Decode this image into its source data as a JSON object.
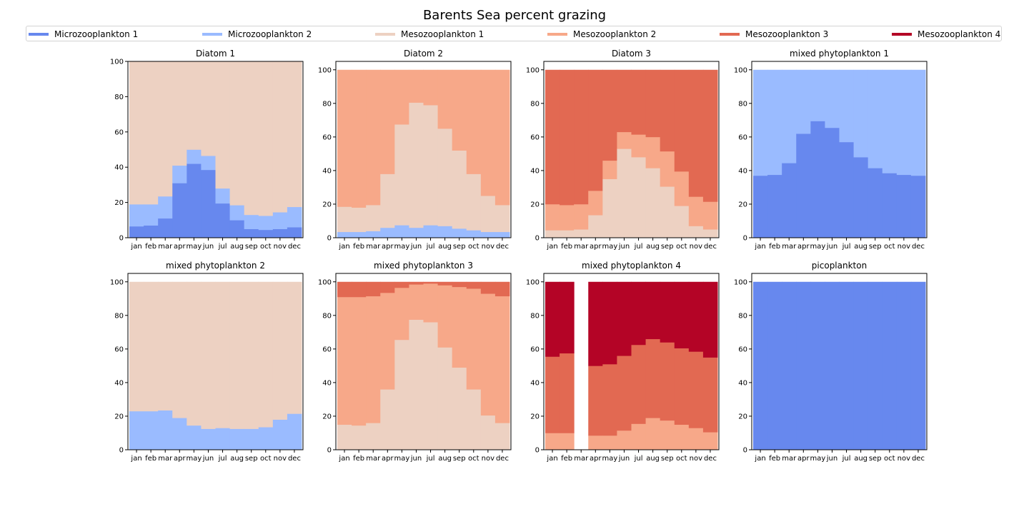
{
  "title": "Barents Sea percent grazing",
  "series_names": [
    "Microzooplankton 1",
    "Microzooplankton 2",
    "Mesozooplankton 1",
    "Mesozooplankton 2",
    "Mesozooplankton 3",
    "Mesozooplankton 4"
  ],
  "colors": {
    "Microzooplankton 1": "#6788ee",
    "Microzooplankton 2": "#9abbff",
    "Mesozooplankton 1": "#edd1c2",
    "Mesozooplankton 2": "#f7a889",
    "Mesozooplankton 3": "#e26952",
    "Mesozooplankton 4": "#b40426"
  },
  "chart_data": [
    {
      "type": "bar",
      "stacked": true,
      "title": "Diatom 1",
      "categories": [
        "jan",
        "feb",
        "mar",
        "apr",
        "may",
        "jun",
        "jul",
        "aug",
        "sep",
        "oct",
        "nov",
        "dec"
      ],
      "ylim": [
        0,
        100
      ],
      "yticks": [
        0,
        20,
        40,
        60,
        80,
        100
      ],
      "series": [
        {
          "name": "Microzooplankton 1",
          "values": [
            6.5,
            7,
            11,
            31,
            42,
            38.5,
            19.5,
            10,
            5,
            4.5,
            5,
            6
          ]
        },
        {
          "name": "Microzooplankton 2",
          "values": [
            12.5,
            12,
            12.5,
            10,
            8,
            8,
            8.5,
            8.5,
            8,
            8,
            9.5,
            11.5
          ]
        },
        {
          "name": "Mesozooplankton 1",
          "values": [
            81,
            81,
            76.5,
            59,
            50,
            53.5,
            72,
            81.5,
            87,
            87.5,
            85.5,
            82.5
          ]
        }
      ]
    },
    {
      "type": "bar",
      "stacked": true,
      "title": "Diatom 2",
      "categories": [
        "jan",
        "feb",
        "mar",
        "apr",
        "may",
        "jun",
        "jul",
        "aug",
        "sep",
        "oct",
        "nov",
        "dec"
      ],
      "ylim": [
        0,
        105
      ],
      "yticks": [
        0,
        20,
        40,
        60,
        80,
        100
      ],
      "series": [
        {
          "name": "Microzooplankton 2",
          "values": [
            3.5,
            3.5,
            4,
            6,
            7.5,
            6,
            7.5,
            7,
            5.5,
            4.5,
            3.5,
            3.5
          ]
        },
        {
          "name": "Mesozooplankton 1",
          "values": [
            15,
            14.5,
            15.5,
            32,
            60,
            74.5,
            71.5,
            58,
            46.5,
            33.5,
            21.5,
            16
          ]
        },
        {
          "name": "Mesozooplankton 2",
          "values": [
            81.5,
            82,
            80.5,
            62,
            32.5,
            19.5,
            21,
            35,
            48,
            62,
            75,
            80.5
          ]
        }
      ]
    },
    {
      "type": "bar",
      "stacked": true,
      "title": "Diatom 3",
      "categories": [
        "jan",
        "feb",
        "mar",
        "apr",
        "may",
        "jun",
        "jul",
        "aug",
        "sep",
        "oct",
        "nov",
        "dec"
      ],
      "ylim": [
        0,
        105
      ],
      "yticks": [
        0,
        20,
        40,
        60,
        80,
        100
      ],
      "series": [
        {
          "name": "Mesozooplankton 1",
          "values": [
            4.5,
            4.5,
            5,
            13.5,
            35,
            53,
            48,
            41.5,
            30.5,
            19,
            7,
            5
          ]
        },
        {
          "name": "Mesozooplankton 2",
          "values": [
            15.5,
            15,
            15,
            14.5,
            11,
            10,
            13.5,
            18.5,
            21,
            20.5,
            17.5,
            16.5
          ]
        },
        {
          "name": "Mesozooplankton 3",
          "values": [
            80,
            80.5,
            80,
            72,
            54,
            37,
            38.5,
            40,
            48.5,
            60.5,
            75.5,
            78.5
          ]
        }
      ]
    },
    {
      "type": "bar",
      "stacked": true,
      "title": "mixed phytoplankton 1",
      "categories": [
        "jan",
        "feb",
        "mar",
        "apr",
        "may",
        "jun",
        "jul",
        "aug",
        "sep",
        "oct",
        "nov",
        "dec"
      ],
      "ylim": [
        0,
        105
      ],
      "yticks": [
        0,
        20,
        40,
        60,
        80,
        100
      ],
      "series": [
        {
          "name": "Microzooplankton 1",
          "values": [
            37,
            37.5,
            44.5,
            62,
            69.5,
            65.5,
            57,
            48,
            41.5,
            38.5,
            37.5,
            37
          ]
        },
        {
          "name": "Microzooplankton 2",
          "values": [
            63,
            62.5,
            55.5,
            38,
            30.5,
            34.5,
            43,
            52,
            58.5,
            61.5,
            62.5,
            63
          ]
        }
      ]
    },
    {
      "type": "bar",
      "stacked": true,
      "title": "mixed phytoplankton 2",
      "categories": [
        "jan",
        "feb",
        "mar",
        "apr",
        "may",
        "jun",
        "jul",
        "aug",
        "sep",
        "oct",
        "nov",
        "dec"
      ],
      "ylim": [
        0,
        105
      ],
      "yticks": [
        0,
        20,
        40,
        60,
        80,
        100
      ],
      "series": [
        {
          "name": "Microzooplankton 2",
          "values": [
            23,
            23,
            23.5,
            19,
            14.5,
            12.5,
            13,
            12.5,
            12.5,
            13.5,
            18,
            21.5
          ]
        },
        {
          "name": "Mesozooplankton 1",
          "values": [
            77,
            77,
            76.5,
            81,
            85.5,
            87.5,
            87,
            87.5,
            87.5,
            86.5,
            82,
            78.5
          ]
        }
      ]
    },
    {
      "type": "bar",
      "stacked": true,
      "title": "mixed phytoplankton 3",
      "categories": [
        "jan",
        "feb",
        "mar",
        "apr",
        "may",
        "jun",
        "jul",
        "aug",
        "sep",
        "oct",
        "nov",
        "dec"
      ],
      "ylim": [
        0,
        105
      ],
      "yticks": [
        0,
        20,
        40,
        60,
        80,
        100
      ],
      "series": [
        {
          "name": "Mesozooplankton 1",
          "values": [
            15,
            14.5,
            16,
            36,
            65.5,
            77.5,
            76,
            61,
            49,
            36,
            20.5,
            16
          ]
        },
        {
          "name": "Mesozooplankton 2",
          "values": [
            76,
            76.5,
            75.5,
            57.5,
            31,
            21,
            23,
            37,
            48,
            60,
            72.5,
            75.5
          ]
        },
        {
          "name": "Mesozooplankton 3",
          "values": [
            9,
            9,
            8.5,
            6.5,
            3.5,
            1.5,
            1,
            2,
            3,
            4,
            7,
            8.5
          ]
        }
      ]
    },
    {
      "type": "bar",
      "stacked": true,
      "title": "mixed phytoplankton 4",
      "categories": [
        "jan",
        "feb",
        "mar",
        "apr",
        "may",
        "jun",
        "jul",
        "aug",
        "sep",
        "oct",
        "nov",
        "dec"
      ],
      "ylim": [
        0,
        105
      ],
      "yticks": [
        0,
        20,
        40,
        60,
        80,
        100
      ],
      "series": [
        {
          "name": "Mesozooplankton 2",
          "values": [
            10,
            10,
            0,
            8.5,
            8.5,
            11.5,
            15.5,
            19,
            17.5,
            15,
            13,
            10.5
          ]
        },
        {
          "name": "Mesozooplankton 3",
          "values": [
            45.5,
            47.5,
            0,
            41.5,
            42.5,
            44.5,
            47,
            47,
            46.5,
            45.5,
            45.5,
            44.5
          ]
        },
        {
          "name": "Mesozooplankton 4",
          "values": [
            44.5,
            42.5,
            0,
            50,
            49,
            44,
            37.5,
            34,
            36,
            39.5,
            41.5,
            45
          ]
        }
      ]
    },
    {
      "type": "bar",
      "stacked": true,
      "title": "picoplankton",
      "categories": [
        "jan",
        "feb",
        "mar",
        "apr",
        "may",
        "jun",
        "jul",
        "aug",
        "sep",
        "oct",
        "nov",
        "dec"
      ],
      "ylim": [
        0,
        105
      ],
      "yticks": [
        0,
        20,
        40,
        60,
        80,
        100
      ],
      "series": [
        {
          "name": "Microzooplankton 1",
          "values": [
            100,
            100,
            100,
            100,
            100,
            100,
            100,
            100,
            100,
            100,
            100,
            100
          ]
        }
      ]
    }
  ]
}
